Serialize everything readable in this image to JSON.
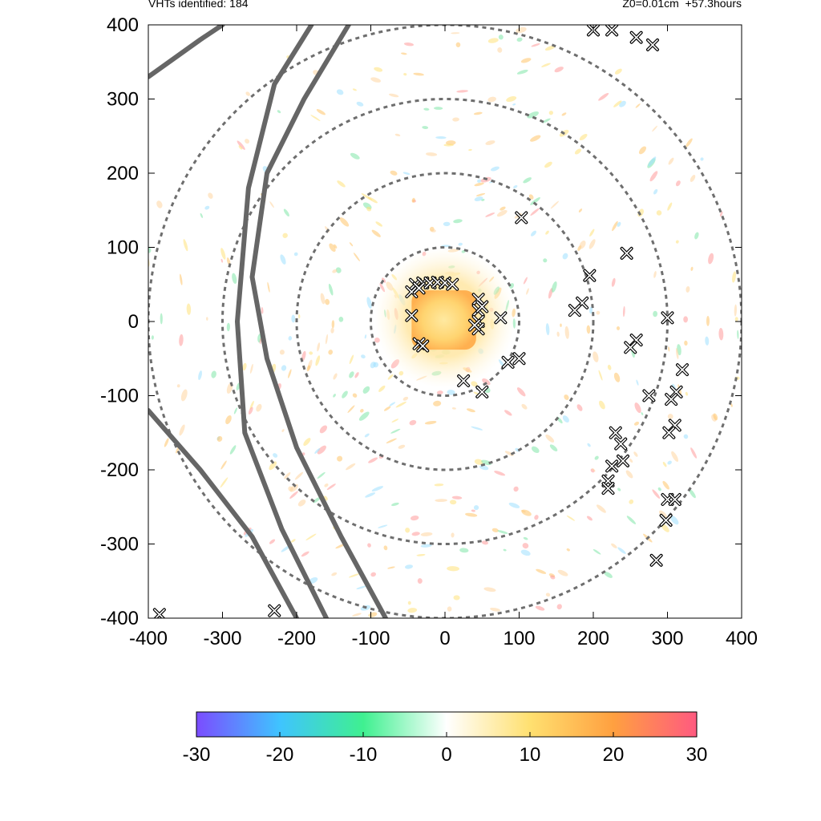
{
  "header": {
    "left_text": "VHTs identified: 184",
    "right_text": "Z0=0.01cm  +57.3hours"
  },
  "chart_data": {
    "type": "scatter",
    "title": "",
    "xlabel": "",
    "ylabel": "",
    "xlim": [
      -400,
      400
    ],
    "ylim": [
      -400,
      400
    ],
    "x_ticks": [
      "-400",
      "-300",
      "-200",
      "-100",
      "0",
      "100",
      "200",
      "300",
      "400"
    ],
    "y_ticks": [
      "400",
      "300",
      "200",
      "100",
      "0",
      "-100",
      "-200",
      "-300",
      "-400"
    ],
    "range_rings_radius": [
      100,
      200,
      300,
      400
    ],
    "track_curves": [
      [
        [
          -400,
          330
        ],
        [
          -330,
          380
        ],
        [
          -300,
          400
        ]
      ],
      [
        [
          -180,
          400
        ],
        [
          -230,
          320
        ],
        [
          -265,
          180
        ],
        [
          -280,
          0
        ],
        [
          -270,
          -150
        ],
        [
          -220,
          -280
        ],
        [
          -160,
          -400
        ]
      ],
      [
        [
          -400,
          -120
        ],
        [
          -330,
          -200
        ],
        [
          -260,
          -290
        ],
        [
          -200,
          -400
        ]
      ],
      [
        [
          -80,
          -400
        ],
        [
          -140,
          -290
        ],
        [
          -200,
          -170
        ],
        [
          -240,
          -50
        ],
        [
          -260,
          60
        ],
        [
          -240,
          200
        ],
        [
          -190,
          300
        ],
        [
          -130,
          400
        ]
      ]
    ],
    "vht_markers": [
      [
        -40,
        50
      ],
      [
        -30,
        52
      ],
      [
        -20,
        52
      ],
      [
        -10,
        53
      ],
      [
        0,
        52
      ],
      [
        10,
        50
      ],
      [
        -45,
        40
      ],
      [
        -35,
        45
      ],
      [
        45,
        30
      ],
      [
        45,
        15
      ],
      [
        45,
        0
      ],
      [
        45,
        -10
      ],
      [
        50,
        20
      ],
      [
        40,
        -5
      ],
      [
        75,
        5
      ],
      [
        -45,
        8
      ],
      [
        -35,
        -30
      ],
      [
        -30,
        -33
      ],
      [
        25,
        -80
      ],
      [
        50,
        -95
      ],
      [
        85,
        -55
      ],
      [
        100,
        -50
      ],
      [
        103,
        140
      ],
      [
        195,
        62
      ],
      [
        185,
        25
      ],
      [
        175,
        15
      ],
      [
        245,
        92
      ],
      [
        300,
        5
      ],
      [
        258,
        -25
      ],
      [
        250,
        -35
      ],
      [
        320,
        -65
      ],
      [
        312,
        -95
      ],
      [
        305,
        -105
      ],
      [
        275,
        -100
      ],
      [
        310,
        -140
      ],
      [
        302,
        -150
      ],
      [
        230,
        -150
      ],
      [
        237,
        -165
      ],
      [
        225,
        -195
      ],
      [
        220,
        -215
      ],
      [
        240,
        -188
      ],
      [
        300,
        -240
      ],
      [
        310,
        -240
      ],
      [
        298,
        -268
      ],
      [
        285,
        -322
      ],
      [
        220,
        -225
      ],
      [
        200,
        393
      ],
      [
        225,
        393
      ],
      [
        258,
        383
      ],
      [
        280,
        373
      ],
      [
        -230,
        -390
      ],
      [
        -385,
        -395
      ]
    ],
    "colorbar": {
      "min": -30,
      "max": 30,
      "ticks": [
        "-30",
        "-20",
        "-10",
        "0",
        "10",
        "20",
        "30"
      ],
      "colors": [
        "#7b4cff",
        "#3fc4ff",
        "#3ff090",
        "#ffffff",
        "#ffe070",
        "#ffa040",
        "#ff5a80"
      ]
    },
    "legend": "bottom"
  }
}
